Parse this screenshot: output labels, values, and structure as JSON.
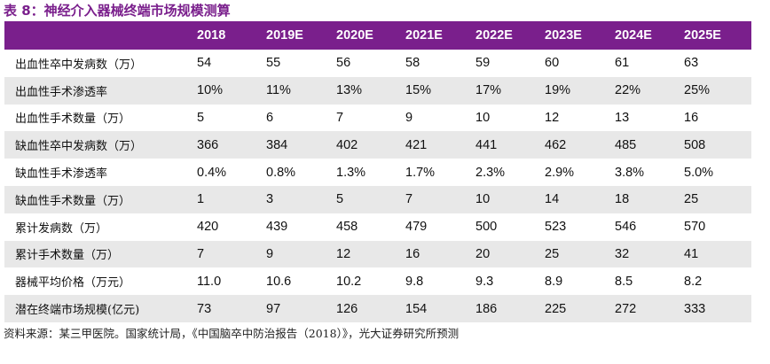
{
  "title": "表 8：神经介入器械终端市场规模测算",
  "columns": [
    "",
    "2018",
    "2019E",
    "2020E",
    "2021E",
    "2022E",
    "2023E",
    "2024E",
    "2025E"
  ],
  "rows": [
    {
      "label": "出血性卒中发病数（万）",
      "values": [
        "54",
        "55",
        "56",
        "58",
        "59",
        "60",
        "61",
        "63"
      ]
    },
    {
      "label": "出血性手术渗透率",
      "values": [
        "10%",
        "11%",
        "13%",
        "15%",
        "17%",
        "19%",
        "22%",
        "25%"
      ]
    },
    {
      "label": "出血性手术数量（万）",
      "values": [
        "5",
        "6",
        "7",
        "9",
        "10",
        "12",
        "13",
        "16"
      ]
    },
    {
      "label": "缺血性卒中发病数（万）",
      "values": [
        "366",
        "384",
        "402",
        "421",
        "441",
        "462",
        "485",
        "508"
      ]
    },
    {
      "label": "缺血性手术渗透率",
      "values": [
        "0.4%",
        "0.8%",
        "1.3%",
        "1.7%",
        "2.3%",
        "2.9%",
        "3.8%",
        "5.0%"
      ]
    },
    {
      "label": "缺血性手术数量（万）",
      "values": [
        "1",
        "3",
        "5",
        "7",
        "10",
        "14",
        "18",
        "25"
      ]
    },
    {
      "label": "累计发病数（万）",
      "values": [
        "420",
        "439",
        "458",
        "479",
        "500",
        "523",
        "546",
        "570"
      ]
    },
    {
      "label": "累计手术数量（万）",
      "values": [
        "7",
        "9",
        "12",
        "16",
        "20",
        "25",
        "32",
        "41"
      ]
    },
    {
      "label": "器械平均价格（万元）",
      "values": [
        "11.0",
        "10.6",
        "10.2",
        "9.8",
        "9.3",
        "8.9",
        "8.5",
        "8.2"
      ]
    },
    {
      "label": "潜在终端市场规模(亿元)",
      "values": [
        "73",
        "97",
        "126",
        "154",
        "186",
        "225",
        "272",
        "333"
      ]
    }
  ],
  "source": "资料来源：某三甲医院。国家统计局，《中国脑卒中防治报告（2018）》，光大证券研究所预测",
  "colors": {
    "header_bg": "#7a1f8c",
    "header_text": "#ffffff",
    "alt_row_bg": "#e8e8e8",
    "title": "#7a1f8c"
  }
}
